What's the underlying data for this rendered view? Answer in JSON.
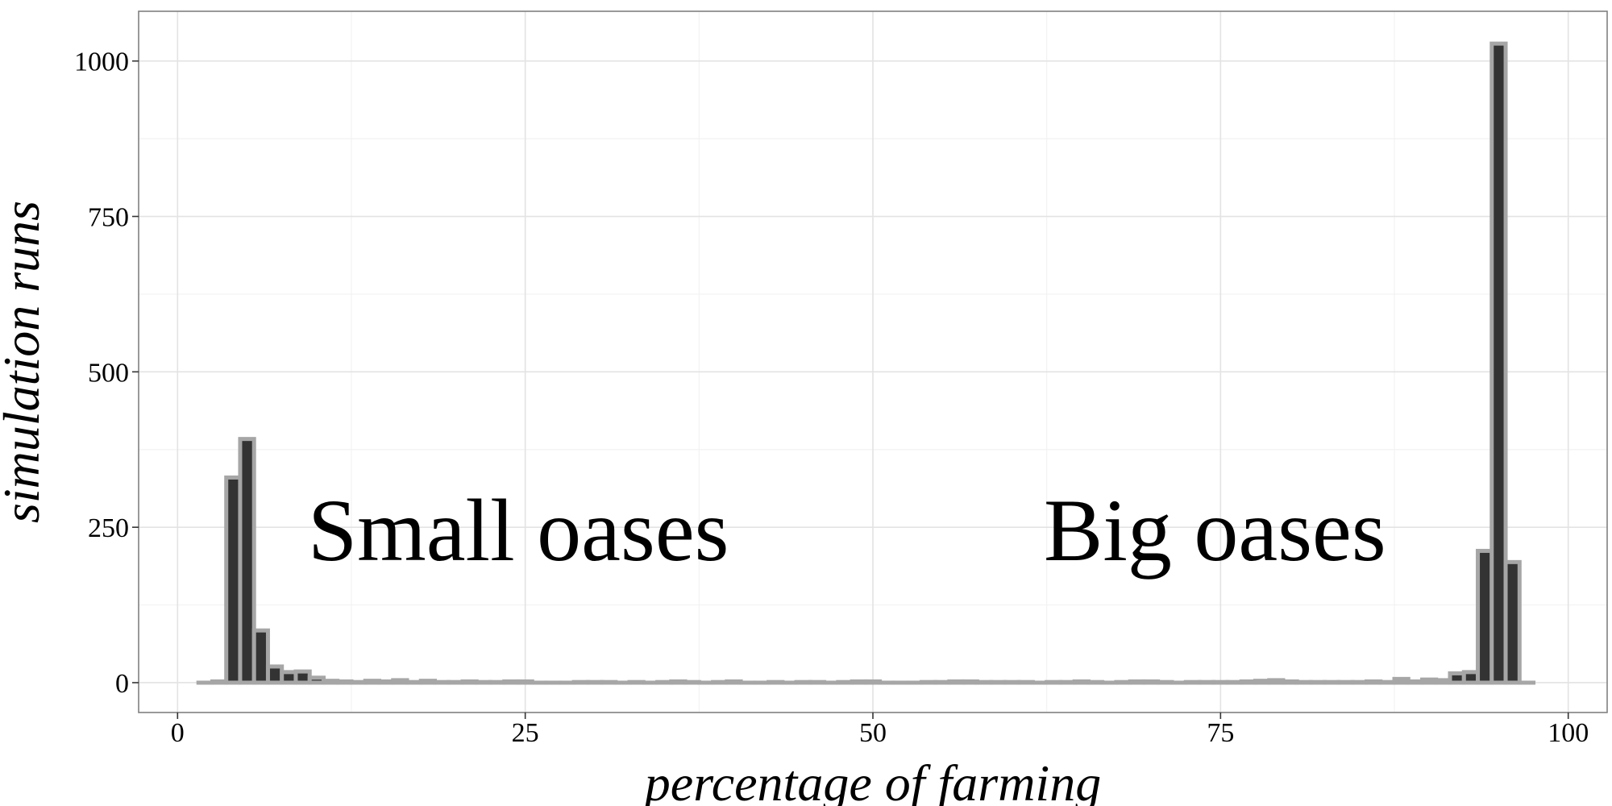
{
  "chart_data": {
    "type": "bar",
    "title": "",
    "xlabel": "percentage of farming",
    "ylabel": "simulation runs",
    "xlim": [
      -2.8,
      102.8
    ],
    "ylim": [
      -48,
      1080
    ],
    "x_ticks": [
      0,
      25,
      50,
      75,
      100
    ],
    "y_ticks": [
      0,
      250,
      500,
      750,
      1000
    ],
    "grid": true,
    "bin_width": 1,
    "x": [
      2,
      3,
      4,
      5,
      6,
      7,
      8,
      9,
      10,
      11,
      12,
      13,
      14,
      15,
      16,
      17,
      18,
      19,
      20,
      21,
      22,
      23,
      24,
      25,
      26,
      27,
      28,
      29,
      30,
      31,
      32,
      33,
      34,
      35,
      36,
      37,
      38,
      39,
      40,
      41,
      42,
      43,
      44,
      45,
      46,
      47,
      48,
      49,
      50,
      51,
      52,
      53,
      54,
      55,
      56,
      57,
      58,
      59,
      60,
      61,
      62,
      63,
      64,
      65,
      66,
      67,
      68,
      69,
      70,
      71,
      72,
      73,
      74,
      75,
      76,
      77,
      78,
      79,
      80,
      81,
      82,
      83,
      84,
      85,
      86,
      87,
      88,
      89,
      90,
      91,
      92,
      93,
      94,
      95,
      96,
      97
    ],
    "values": [
      0,
      2,
      330,
      392,
      84,
      26,
      17,
      18,
      8,
      3,
      2,
      1,
      3,
      2,
      4,
      1,
      3,
      1,
      1,
      2,
      1,
      1,
      2,
      2,
      0,
      0,
      0,
      1,
      1,
      1,
      0,
      1,
      0,
      1,
      2,
      1,
      0,
      1,
      2,
      0,
      0,
      1,
      0,
      1,
      1,
      0,
      1,
      2,
      2,
      0,
      0,
      0,
      1,
      1,
      2,
      2,
      1,
      1,
      1,
      1,
      0,
      1,
      1,
      2,
      1,
      0,
      1,
      2,
      2,
      1,
      0,
      1,
      1,
      1,
      1,
      2,
      3,
      4,
      2,
      1,
      1,
      1,
      1,
      1,
      2,
      1,
      6,
      2,
      5,
      4,
      15,
      17,
      212,
      1028,
      194,
      0
    ],
    "annotations": [
      "Small oases",
      "Big oases"
    ]
  }
}
